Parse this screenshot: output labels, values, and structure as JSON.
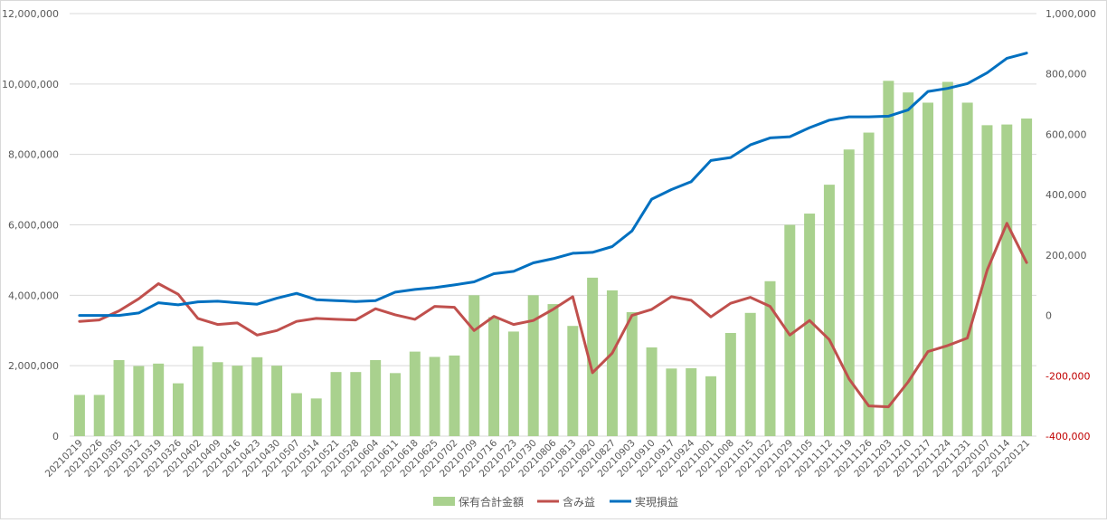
{
  "chart_data": {
    "type": "bar+line",
    "title": "",
    "categories": [
      "20210219",
      "20210226",
      "20210305",
      "20210312",
      "20210319",
      "20210326",
      "20210402",
      "20210409",
      "20210416",
      "20210423",
      "20210430",
      "20210507",
      "20210514",
      "20210521",
      "20210528",
      "20210604",
      "20210611",
      "20210618",
      "20210625",
      "20210702",
      "20210709",
      "20210716",
      "20210723",
      "20210730",
      "20210806",
      "20210813",
      "20210820",
      "20210827",
      "20210903",
      "20210910",
      "20210917",
      "20210924",
      "20211001",
      "20211008",
      "20211015",
      "20211022",
      "20211029",
      "20211105",
      "20211112",
      "20211119",
      "20211126",
      "20211203",
      "20211210",
      "20211217",
      "20211224",
      "20211231",
      "20220107",
      "20220114",
      "20220121"
    ],
    "y_left": {
      "ylim": [
        0,
        12000000
      ],
      "ticks": [
        0,
        2000000,
        4000000,
        6000000,
        8000000,
        10000000,
        12000000
      ],
      "tick_labels": [
        "0",
        "2,000,000",
        "4,000,000",
        "6,000,000",
        "8,000,000",
        "10,000,000",
        "12,000,000"
      ]
    },
    "y_right": {
      "ylim": [
        -400000,
        1000000
      ],
      "ticks": [
        -400000,
        -200000,
        0,
        200000,
        400000,
        600000,
        800000,
        1000000
      ],
      "tick_labels": [
        "-400,000",
        "-200,000",
        "0",
        "200,000",
        "400,000",
        "600,000",
        "800,000",
        "1,000,000"
      ]
    },
    "grid": true,
    "legend_position": "bottom",
    "series": [
      {
        "name": "保有合計金額",
        "kind": "bar",
        "axis": "left",
        "color": "#a9d18e",
        "values": [
          1170000,
          1170000,
          2160000,
          1990000,
          2060000,
          1500000,
          2550000,
          2100000,
          2000000,
          2240000,
          2000000,
          1220000,
          1070000,
          1820000,
          1820000,
          2160000,
          1790000,
          2400000,
          2250000,
          2290000,
          4000000,
          3380000,
          2970000,
          4000000,
          3750000,
          3130000,
          4500000,
          4140000,
          3520000,
          2520000,
          1920000,
          1930000,
          1700000,
          2930000,
          3500000,
          4400000,
          6000000,
          6320000,
          7140000,
          8140000,
          8620000,
          10090000,
          9760000,
          9470000,
          10060000,
          9470000,
          8830000,
          8850000,
          9020000
        ]
      },
      {
        "name": "含み益",
        "kind": "line",
        "axis": "right",
        "color": "#c0504d",
        "values": [
          -20000,
          -15000,
          15000,
          55000,
          105000,
          70000,
          -10000,
          -30000,
          -25000,
          -65000,
          -50000,
          -20000,
          -10000,
          -13000,
          -15000,
          22000,
          2000,
          -13000,
          30000,
          27000,
          -50000,
          -3000,
          -30000,
          -17000,
          20000,
          62000,
          -190000,
          -125000,
          0,
          20000,
          62000,
          50000,
          -5000,
          40000,
          60000,
          30000,
          -65000,
          -17000,
          -80000,
          -210000,
          -300000,
          -303000,
          -220000,
          -120000,
          -100000,
          -75000,
          150000,
          305000,
          175000
        ]
      },
      {
        "name": "実現損益",
        "kind": "line",
        "axis": "right",
        "color": "#0070c0",
        "values": [
          0,
          0,
          0,
          8000,
          42000,
          35000,
          45000,
          47000,
          42000,
          37000,
          57000,
          73000,
          52000,
          49000,
          46000,
          49000,
          77000,
          86000,
          92000,
          101000,
          111000,
          138000,
          146000,
          174000,
          188000,
          206000,
          209000,
          228000,
          280000,
          385000,
          417000,
          443000,
          513000,
          523000,
          565000,
          588000,
          592000,
          622000,
          647000,
          658000,
          658000,
          660000,
          681000,
          742000,
          752000,
          768000,
          804000,
          852000,
          869000
        ]
      }
    ]
  }
}
